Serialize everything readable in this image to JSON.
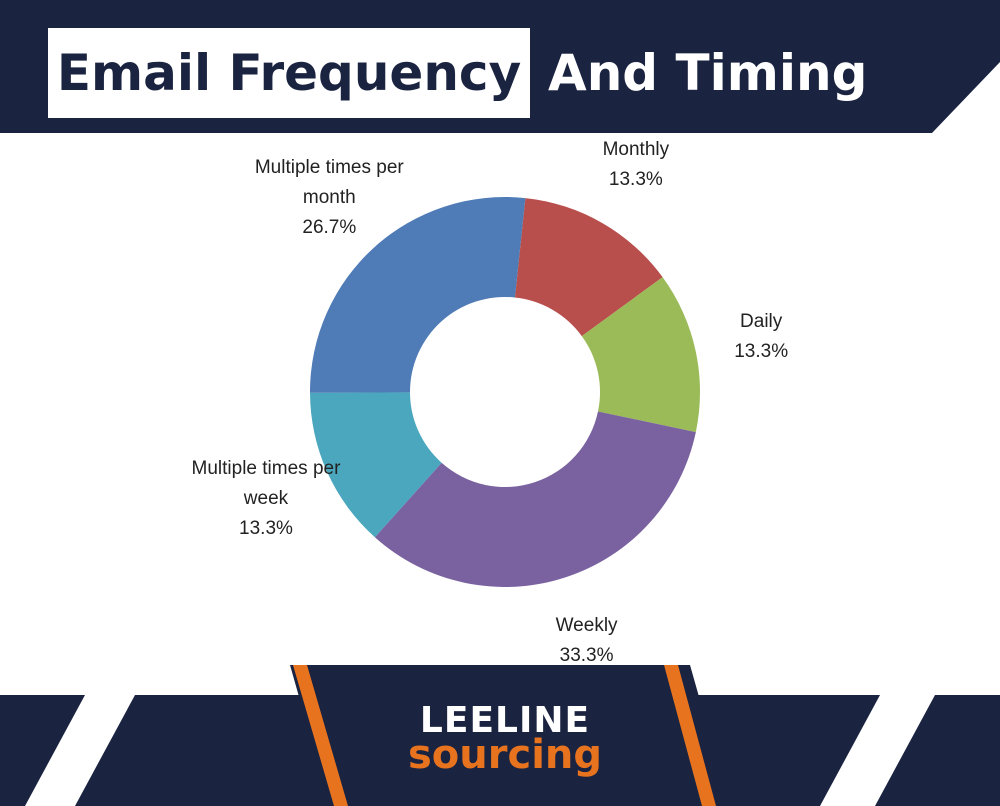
{
  "header": {
    "title_boxed": "Email Frequency",
    "title_rest": "And Timing"
  },
  "chart_data": {
    "type": "donut",
    "categories": [
      "Monthly",
      "Daily",
      "Weekly",
      "Multiple times per week",
      "Multiple times per month"
    ],
    "values": [
      13.3,
      13.3,
      33.3,
      13.3,
      26.7
    ],
    "value_labels": [
      "13.3%",
      "13.3%",
      "33.3%",
      "13.3%",
      "26.7%"
    ],
    "colors": [
      "#b84f4c",
      "#9bbb59",
      "#7a62a0",
      "#4ba7be",
      "#4f7bb6"
    ]
  },
  "footer": {
    "logo_top": "LEELINE",
    "logo_bottom": "sourcing"
  }
}
